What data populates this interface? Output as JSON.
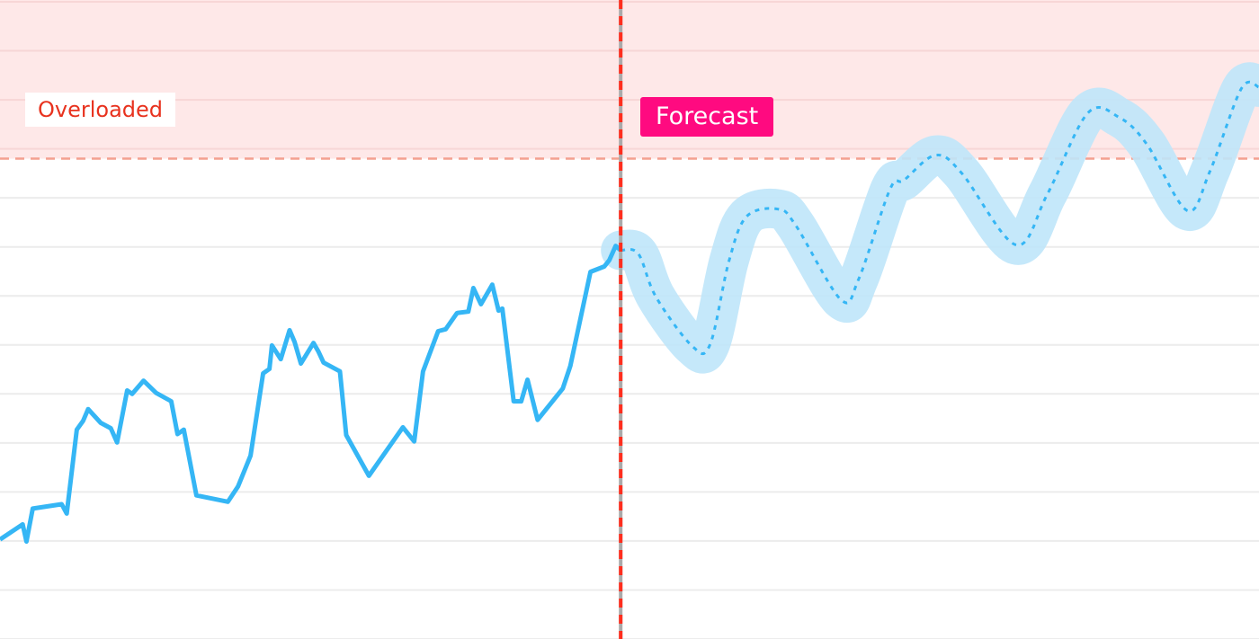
{
  "chart_data": {
    "type": "line",
    "title": "",
    "xlabel": "",
    "ylabel": "",
    "xlim": [
      0,
      100
    ],
    "ylim": [
      0,
      13
    ],
    "grid": true,
    "threshold": {
      "value": 9.8,
      "label": "Overloaded"
    },
    "forecast_start": 49.3,
    "forecast_label": "Forecast",
    "colors": {
      "actual": "#35b6f5",
      "forecast_band": "#bfe6f9",
      "overload_zone": "#fee8e8",
      "threshold_line": "#f4a090",
      "divider": "#ff2e1e",
      "forecast_badge": "#ff0a80",
      "overloaded_text": "#e8321e"
    },
    "series": [
      {
        "kind": "actual",
        "x": [
          0,
          1.8,
          2.1,
          2.6,
          4.9,
          5.3,
          6.1,
          6.6,
          7,
          8,
          8.8,
          9.3,
          10.1,
          10.5,
          11.4,
          12.4,
          13.6,
          14.1,
          14.6,
          15.6,
          18.1,
          18.9,
          19.9,
          20.9,
          21.4,
          21.6,
          22.3,
          23,
          23.4,
          23.9,
          24.9,
          25.3,
          25.7,
          27,
          27.5,
          29.3,
          32,
          32.9,
          33.6,
          34.8,
          35.4,
          36.3,
          37.2,
          37.6,
          38.2,
          39.1,
          39.6,
          39.9,
          40.8,
          41.4,
          41.9,
          42.7,
          44.7,
          45.3,
          46.9,
          48,
          48.4,
          48.9,
          49.3
        ],
        "y": [
          2.03,
          2.34,
          1.99,
          2.66,
          2.75,
          2.56,
          4.27,
          4.45,
          4.69,
          4.41,
          4.3,
          4.01,
          5.07,
          5,
          5.27,
          5.02,
          4.85,
          4.18,
          4.27,
          2.93,
          2.8,
          3.11,
          3.74,
          5.42,
          5.51,
          5.99,
          5.71,
          6.3,
          6.06,
          5.62,
          6.04,
          5.86,
          5.64,
          5.46,
          4.16,
          3.33,
          4.32,
          4.03,
          5.46,
          6.28,
          6.32,
          6.65,
          6.68,
          7.16,
          6.83,
          7.23,
          6.7,
          6.74,
          4.85,
          4.85,
          5.29,
          4.47,
          5.11,
          5.57,
          7.49,
          7.6,
          7.73,
          8.02,
          7.93
        ]
      },
      {
        "kind": "forecast",
        "x": [
          49.3,
          50.7,
          52.1,
          55,
          56.4,
          57.9,
          59.3,
          61.8,
          63.2,
          66.8,
          68.2,
          70.7,
          71.8,
          74.3,
          76.4,
          80.7,
          83.2,
          86.4,
          88.9,
          91.1,
          94.3,
          96.1,
          98.6,
          100
        ],
        "y": [
          7.93,
          7.86,
          6.98,
          5.97,
          6.01,
          7.71,
          8.62,
          8.77,
          8.44,
          6.92,
          7.34,
          9.18,
          9.36,
          9.87,
          9.5,
          8.04,
          9.08,
          10.73,
          10.64,
          10.09,
          8.74,
          9.54,
          11.23,
          11.26
        ]
      }
    ]
  }
}
